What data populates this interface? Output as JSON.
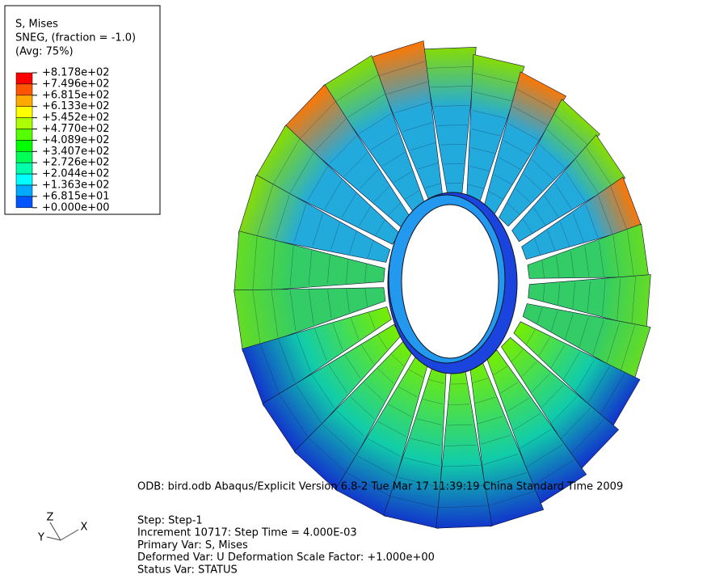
{
  "legend": {
    "title": [
      "S, Mises",
      "SNEG, (fraction = -1.0)",
      "(Avg: 75%)"
    ],
    "labels": [
      "+8.178e+02",
      "+7.496e+02",
      "+6.815e+02",
      "+6.133e+02",
      "+5.452e+02",
      "+4.770e+02",
      "+4.089e+02",
      "+3.407e+02",
      "+2.726e+02",
      "+2.044e+02",
      "+1.363e+02",
      "+6.815e+01",
      "+0.000e+00"
    ],
    "colors": [
      "#ff0000",
      "#ff5500",
      "#ffaa00",
      "#ffff00",
      "#aaff00",
      "#55ff00",
      "#00ff00",
      "#00ff55",
      "#00ffaa",
      "#00ffff",
      "#00aaff",
      "#0055ff",
      "#0000ff"
    ]
  },
  "info": {
    "odb": "ODB: bird.odb    Abaqus/Explicit Version 6.8-2    Tue Mar 17 11:39:19 China Standard Time 2009",
    "lines": [
      "Step: Step-1",
      "Increment    10717: Step Time =    4.000E-03",
      "Primary Var: S, Mises",
      "Deformed Var: U   Deformation Scale Factor: +1.000e+00",
      "Status Var: STATUS"
    ]
  },
  "triad": {
    "x": "X",
    "y": "Y",
    "z": "Z"
  }
}
